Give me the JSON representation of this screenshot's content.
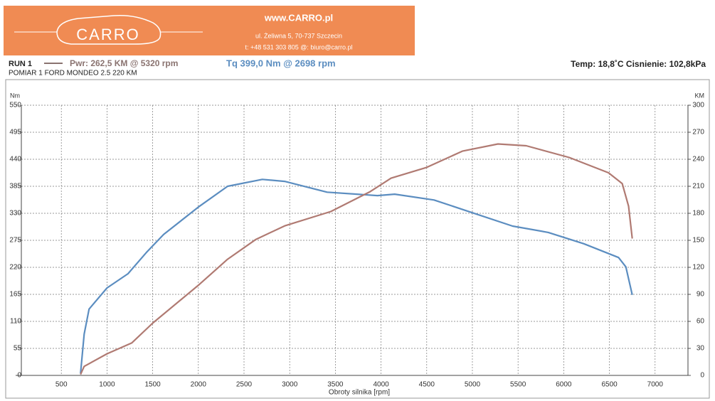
{
  "header": {
    "website": "www.CARRO.pl",
    "logo": "CARRO",
    "address": "ul. Żeliwna 5, 70-737 Szczecin",
    "contact": "t: +48 531 303 805   @: biuro@carro.pl"
  },
  "run": {
    "label": "RUN 1",
    "description": "POMIAR 1 FORD MONDEO 2.5 220 KM",
    "conditions": "Temp: 18,8˚C  Cisnienie: 102,8kPa"
  },
  "chart_data": {
    "type": "line",
    "x_label": "Obroty silnika [rpm]",
    "y_label": "Nm",
    "y2_label": "KM",
    "xlim": [
      0,
      7360
    ],
    "xticks": [
      500,
      1000,
      1500,
      2000,
      2500,
      3000,
      3500,
      4000,
      4500,
      5000,
      5500,
      6000,
      6500,
      7000
    ],
    "ylim": [
      0,
      550
    ],
    "yticks": [
      0,
      55,
      110,
      165,
      220,
      275,
      330,
      385,
      440,
      495,
      550
    ],
    "y2lim": [
      0,
      300
    ],
    "y2ticks": [
      0,
      30,
      60,
      90,
      120,
      150,
      180,
      210,
      240,
      270,
      300
    ],
    "grid": true,
    "series": [
      {
        "name": "Tq 399,0 Nm @ 2698 rpm",
        "color": "#5b8dc0",
        "axis": "y",
        "x": [
          710,
          750,
          804,
          1000,
          1230,
          1430,
          1620,
          2010,
          2320,
          2700,
          2945,
          3410,
          3960,
          4150,
          4580,
          4970,
          5440,
          5830,
          6220,
          6600,
          6680,
          6750
        ],
        "values": [
          4,
          84,
          135,
          178,
          207,
          250,
          287,
          344,
          385,
          399,
          395,
          373,
          366,
          369,
          357,
          333,
          304,
          291,
          268,
          240,
          221,
          164
        ]
      },
      {
        "name": "Pwr: 262,5 KM @ 5320 rpm",
        "color": "#b07a72",
        "axis": "y2",
        "x": [
          710,
          750,
          1000,
          1270,
          1500,
          2010,
          2320,
          2630,
          2945,
          3450,
          3880,
          4110,
          4500,
          4890,
          5280,
          5590,
          6060,
          6490,
          6640,
          6710,
          6750
        ],
        "values": [
          1,
          10,
          24,
          36,
          58,
          101,
          129,
          151,
          166,
          182,
          204,
          219,
          231,
          249,
          257,
          255,
          242,
          225,
          213,
          188,
          152
        ]
      }
    ]
  }
}
